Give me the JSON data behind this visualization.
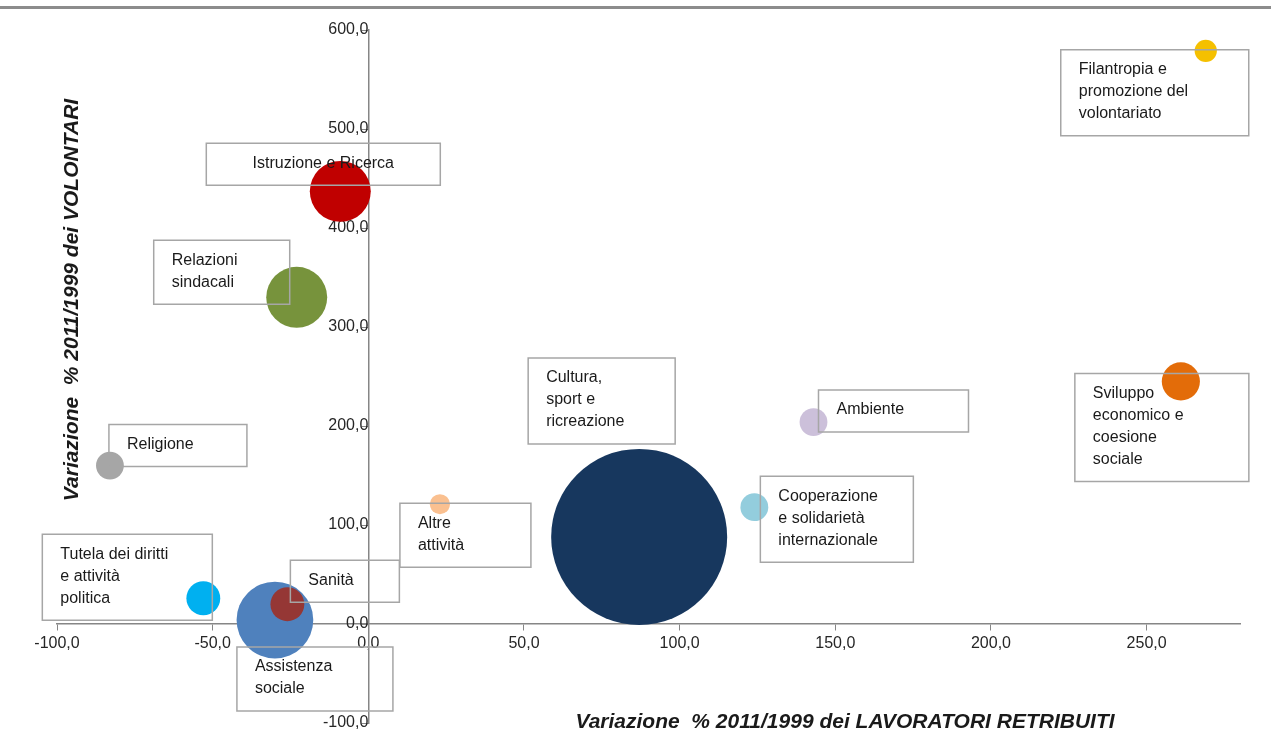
{
  "chart_data": {
    "type": "bubble",
    "xlabel": "Variazione  % 2011/1999 dei LAVORATORI RETRIBUITI",
    "ylabel": "Variazione  % 2011/1999 dei VOLONTARI",
    "xlim": [
      -100,
      280
    ],
    "ylim": [
      -100,
      600
    ],
    "xticks": [
      {
        "value": -100,
        "label": "-100,0"
      },
      {
        "value": -50,
        "label": "-50,0"
      },
      {
        "value": 0,
        "label": "0,0"
      },
      {
        "value": 50,
        "label": "50,0"
      },
      {
        "value": 100,
        "label": "100,0"
      },
      {
        "value": 150,
        "label": "150,0"
      },
      {
        "value": 200,
        "label": "200,0"
      },
      {
        "value": 250,
        "label": "250,0"
      }
    ],
    "yticks": [
      {
        "value": -100,
        "label": "-100,0"
      },
      {
        "value": 0,
        "label": "0,0"
      },
      {
        "value": 100,
        "label": "100,0"
      },
      {
        "value": 200,
        "label": "200,0"
      },
      {
        "value": 300,
        "label": "300,0"
      },
      {
        "value": 400,
        "label": "400,0"
      },
      {
        "value": 500,
        "label": "500,0"
      },
      {
        "value": 600,
        "label": "600,0"
      }
    ],
    "grid": false,
    "legend": false,
    "series": [
      {
        "name": "Filantropia e promozione del volontariato",
        "color": "#f5c000",
        "x": [
          269
        ],
        "values": [
          579
        ],
        "sizes": [
          0.016
        ]
      },
      {
        "name": "Istruzione e Ricerca",
        "color": "#c00000",
        "x": [
          -9
        ],
        "values": [
          437
        ],
        "sizes": [
          0.12
        ]
      },
      {
        "name": "Relazioni sindacali",
        "color": "#77933c",
        "x": [
          -23
        ],
        "values": [
          330
        ],
        "sizes": [
          0.12
        ]
      },
      {
        "name": "Religione",
        "color": "#a6a6a6",
        "x": [
          -83
        ],
        "values": [
          160
        ],
        "sizes": [
          0.025
        ]
      },
      {
        "name": "Cultura, sport e ricreazione",
        "color": "#17375e",
        "x": [
          87
        ],
        "values": [
          88
        ],
        "sizes": [
          1
        ]
      },
      {
        "name": "Ambiente",
        "color": "#ccc0da",
        "x": [
          143
        ],
        "values": [
          204
        ],
        "sizes": [
          0.025
        ]
      },
      {
        "name": "Sviluppo economico e coesione sociale",
        "color": "#e36c09",
        "x": [
          261
        ],
        "values": [
          245
        ],
        "sizes": [
          0.047
        ]
      },
      {
        "name": "Cooperazione e solidarietà internazionale",
        "color": "#93cddd",
        "x": [
          124
        ],
        "values": [
          118
        ],
        "sizes": [
          0.025
        ]
      },
      {
        "name": "Altre attività",
        "color": "#fac090",
        "x": [
          23
        ],
        "values": [
          121
        ],
        "sizes": [
          0.013
        ]
      },
      {
        "name": "Tutela dei diritti e attività politica",
        "color": "#00b0f0",
        "x": [
          -53
        ],
        "values": [
          26
        ],
        "sizes": [
          0.037
        ]
      },
      {
        "name": "Assistenza sociale",
        "color": "#4f81bd",
        "x": [
          -30
        ],
        "values": [
          4
        ],
        "sizes": [
          0.19
        ]
      },
      {
        "name": "Sanità",
        "color": "#953735",
        "x": [
          -26
        ],
        "values": [
          20
        ],
        "sizes": [
          0.037
        ]
      }
    ]
  }
}
